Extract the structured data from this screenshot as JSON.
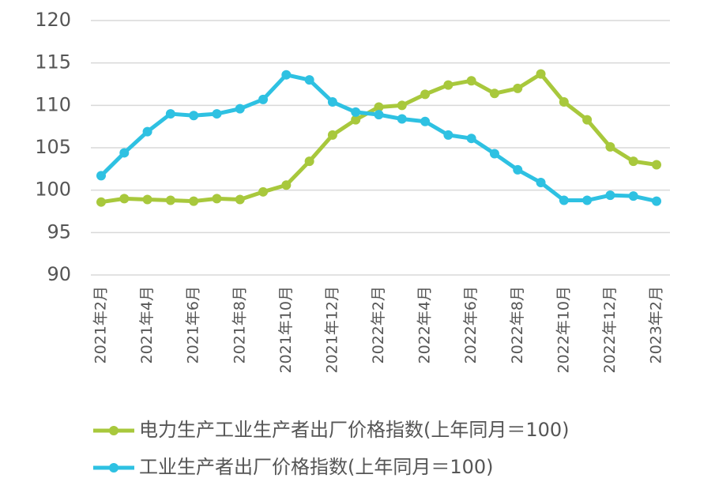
{
  "chart_data": {
    "type": "line",
    "categories": [
      "2021年2月",
      null,
      "2021年4月",
      null,
      "2021年6月",
      null,
      "2021年8月",
      null,
      "2021年10月",
      null,
      "2021年12月",
      null,
      "2022年2月",
      null,
      "2022年4月",
      null,
      "2022年6月",
      null,
      "2022年8月",
      null,
      "2022年10月",
      null,
      "2022年12月",
      null,
      "2023年2月"
    ],
    "series": [
      {
        "name": "电力生产工业生产者出厂价格指数(上年同月＝100)",
        "color": "#a8c83c",
        "values": [
          98.6,
          99.0,
          98.9,
          98.8,
          98.7,
          99.0,
          98.9,
          99.8,
          100.6,
          103.4,
          106.5,
          108.3,
          109.8,
          110.0,
          111.3,
          112.4,
          112.9,
          111.4,
          112.0,
          113.7,
          110.4,
          108.3,
          105.1,
          103.4,
          103.0
        ]
      },
      {
        "name": "工业生产者出厂价格指数(上年同月＝100)",
        "color": "#2ec1e2",
        "values": [
          101.7,
          104.4,
          106.9,
          109.0,
          108.8,
          109.0,
          109.6,
          110.7,
          113.6,
          113.0,
          110.4,
          109.2,
          108.9,
          108.4,
          108.1,
          106.5,
          106.1,
          104.3,
          102.4,
          100.9,
          98.8,
          98.8,
          99.4,
          99.3,
          98.7
        ]
      }
    ],
    "ylim": [
      90,
      120
    ],
    "yticks": [
      90,
      95,
      100,
      105,
      110,
      115,
      120
    ],
    "grid": true
  }
}
